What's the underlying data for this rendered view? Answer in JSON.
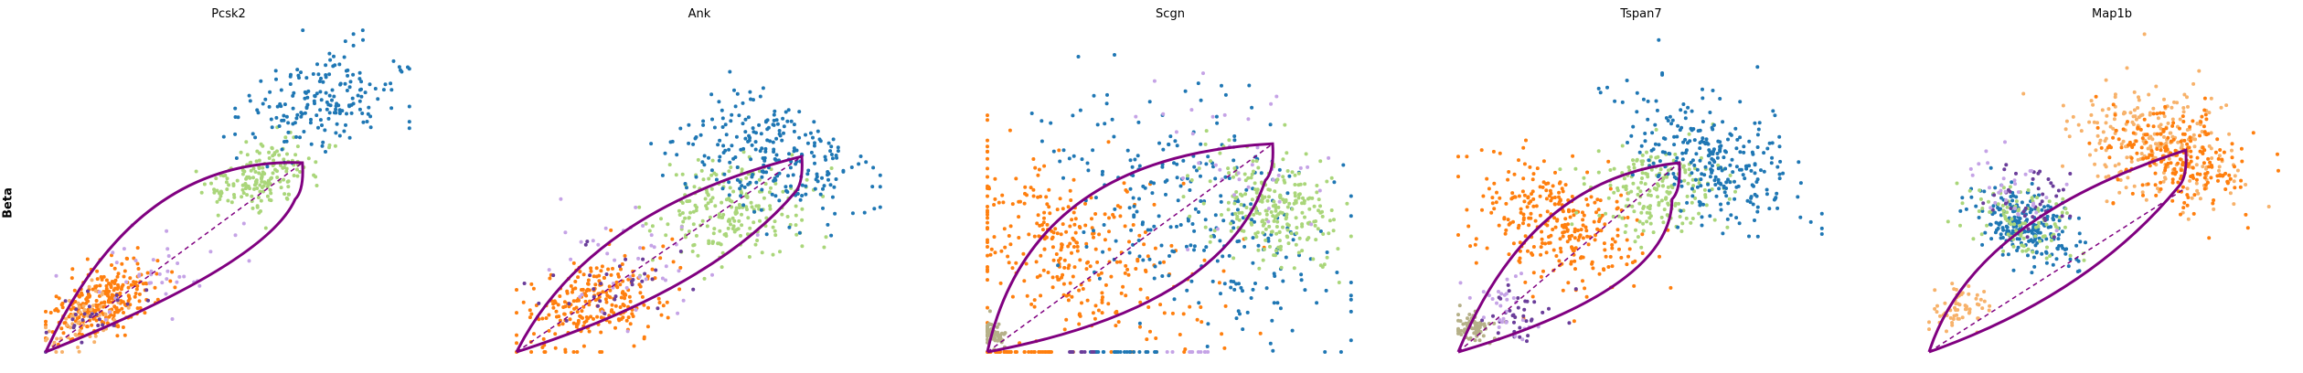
{
  "row_label": "Beta",
  "colors": {
    "orange": "#ff7f0e",
    "light_orange": "#f7b26b",
    "blue": "#1f77b4",
    "light_green": "#aad67a",
    "lavender": "#c5a3e6",
    "purple": "#6a3d9a",
    "olive": "#b5b088",
    "curve": "#800080"
  },
  "chart_data": [
    {
      "type": "scatter",
      "title": "Pcsk2",
      "xlim": [
        0,
        1
      ],
      "ylim": [
        0,
        1
      ],
      "grid": false,
      "phase_curve": {
        "up_cx": 0.25,
        "up_cy": 0.62,
        "down_cx": 0.62,
        "down_cy": 0.28,
        "endpoint": [
          0.72,
          0.6
        ]
      },
      "steady_state_line": {
        "from": [
          0,
          0
        ],
        "to": [
          0.72,
          0.6
        ]
      },
      "clusters": [
        {
          "color": "orange",
          "n": 260,
          "cx": 0.16,
          "cy": 0.16,
          "spread": 0.05,
          "along": 0.85
        },
        {
          "color": "light_orange",
          "n": 60,
          "cx": 0.1,
          "cy": 0.1,
          "spread": 0.04,
          "along": 0.9
        },
        {
          "color": "light_green",
          "n": 180,
          "cx": 0.6,
          "cy": 0.55,
          "spread": 0.05,
          "along": 0.8
        },
        {
          "color": "blue",
          "n": 190,
          "cx": 0.78,
          "cy": 0.8,
          "spread": 0.09,
          "along": 0.6
        },
        {
          "color": "lavender",
          "n": 40,
          "cx": 0.3,
          "cy": 0.25,
          "spread": 0.08,
          "along": 0.8
        },
        {
          "color": "purple",
          "n": 25,
          "cx": 0.12,
          "cy": 0.1,
          "spread": 0.04,
          "along": 0.9
        }
      ]
    },
    {
      "type": "scatter",
      "title": "Ank",
      "xlim": [
        0,
        1
      ],
      "ylim": [
        0,
        1
      ],
      "grid": false,
      "phase_curve": {
        "up_cx": 0.2,
        "up_cy": 0.45,
        "down_cx": 0.55,
        "down_cy": 0.2,
        "endpoint": [
          0.8,
          0.62
        ]
      },
      "steady_state_line": {
        "from": [
          0,
          0
        ],
        "to": [
          0.8,
          0.62
        ]
      },
      "clusters": [
        {
          "color": "orange",
          "n": 260,
          "cx": 0.22,
          "cy": 0.16,
          "spread": 0.07,
          "along": 0.75
        },
        {
          "color": "light_green",
          "n": 220,
          "cx": 0.6,
          "cy": 0.45,
          "spread": 0.08,
          "along": 0.6
        },
        {
          "color": "blue",
          "n": 250,
          "cx": 0.72,
          "cy": 0.62,
          "spread": 0.12,
          "along": 0.3
        },
        {
          "color": "lavender",
          "n": 40,
          "cx": 0.3,
          "cy": 0.28,
          "spread": 0.1,
          "along": 0.6
        },
        {
          "color": "purple",
          "n": 30,
          "cx": 0.26,
          "cy": 0.2,
          "spread": 0.06,
          "along": 0.7
        }
      ]
    },
    {
      "type": "scatter",
      "title": "Scgn",
      "xlim": [
        0,
        1
      ],
      "ylim": [
        0,
        1
      ],
      "grid": false,
      "phase_curve": {
        "up_cx": 0.12,
        "up_cy": 0.62,
        "down_cx": 0.66,
        "down_cy": 0.14,
        "endpoint": [
          0.8,
          0.66
        ]
      },
      "steady_state_line": {
        "from": [
          0,
          0
        ],
        "to": [
          0.8,
          0.66
        ]
      },
      "clusters": [
        {
          "color": "orange",
          "n": 320,
          "cx": 0.25,
          "cy": 0.3,
          "spread": 0.17,
          "along": 0.1
        },
        {
          "color": "blue",
          "n": 280,
          "cx": 0.6,
          "cy": 0.45,
          "spread": 0.2,
          "along": 0.0
        },
        {
          "color": "light_green",
          "n": 250,
          "cx": 0.8,
          "cy": 0.45,
          "spread": 0.09,
          "along": 0.0
        },
        {
          "color": "lavender",
          "n": 40,
          "cx": 0.75,
          "cy": 0.6,
          "spread": 0.12,
          "along": 0.0
        },
        {
          "color": "olive",
          "n": 60,
          "cx": 0.01,
          "cy": 0.06,
          "spread": 0.02,
          "along": 0.0
        }
      ],
      "baseline_points": [
        {
          "color": "orange",
          "x_from": 0.0,
          "x_to": 0.18,
          "n": 40
        },
        {
          "color": "blue",
          "x_from": 0.28,
          "x_to": 0.5,
          "n": 25
        },
        {
          "color": "purple",
          "x_from": 0.22,
          "x_to": 0.3,
          "n": 10
        },
        {
          "color": "lavender",
          "x_from": 0.5,
          "x_to": 0.62,
          "n": 10
        }
      ]
    },
    {
      "type": "scatter",
      "title": "Tspan7",
      "xlim": [
        0,
        1
      ],
      "ylim": [
        0,
        1
      ],
      "grid": false,
      "phase_curve": {
        "up_cx": 0.2,
        "up_cy": 0.55,
        "down_cx": 0.6,
        "down_cy": 0.2,
        "endpoint": [
          0.62,
          0.6
        ]
      },
      "steady_state_line": {
        "from": [
          0,
          0
        ],
        "to": [
          0.62,
          0.6
        ]
      },
      "clusters": [
        {
          "color": "orange",
          "n": 300,
          "cx": 0.28,
          "cy": 0.42,
          "spread": 0.12,
          "along": 0.2
        },
        {
          "color": "light_green",
          "n": 200,
          "cx": 0.55,
          "cy": 0.52,
          "spread": 0.08,
          "along": 0.5
        },
        {
          "color": "blue",
          "n": 280,
          "cx": 0.7,
          "cy": 0.62,
          "spread": 0.12,
          "along": 0.1
        },
        {
          "color": "olive",
          "n": 70,
          "cx": 0.04,
          "cy": 0.08,
          "spread": 0.03,
          "along": 0.3
        },
        {
          "color": "purple",
          "n": 35,
          "cx": 0.18,
          "cy": 0.12,
          "spread": 0.05,
          "along": 0.6
        },
        {
          "color": "lavender",
          "n": 30,
          "cx": 0.14,
          "cy": 0.14,
          "spread": 0.06,
          "along": 0.4
        }
      ]
    },
    {
      "type": "scatter",
      "title": "Map1b",
      "xlim": [
        0,
        1
      ],
      "ylim": [
        0,
        1
      ],
      "grid": false,
      "phase_curve": {
        "up_cx": 0.12,
        "up_cy": 0.42,
        "down_cx": 0.45,
        "down_cy": 0.18,
        "endpoint": [
          0.72,
          0.64
        ]
      },
      "steady_state_line": {
        "from": [
          0,
          0
        ],
        "to": [
          0.72,
          0.52
        ]
      },
      "clusters": [
        {
          "color": "light_orange",
          "n": 260,
          "cx": 0.64,
          "cy": 0.66,
          "spread": 0.11,
          "along": 0.3
        },
        {
          "color": "orange",
          "n": 220,
          "cx": 0.7,
          "cy": 0.62,
          "spread": 0.09,
          "along": 0.3
        },
        {
          "color": "blue",
          "n": 230,
          "cx": 0.27,
          "cy": 0.4,
          "spread": 0.07,
          "along": 0.2
        },
        {
          "color": "light_green",
          "n": 100,
          "cx": 0.26,
          "cy": 0.42,
          "spread": 0.07,
          "along": 0.2
        },
        {
          "color": "purple",
          "n": 40,
          "cx": 0.3,
          "cy": 0.48,
          "spread": 0.06,
          "along": 0.2
        },
        {
          "color": "lavender",
          "n": 30,
          "cx": 0.24,
          "cy": 0.5,
          "spread": 0.06,
          "along": 0.2
        },
        {
          "color": "light_orange",
          "n": 60,
          "cx": 0.08,
          "cy": 0.14,
          "spread": 0.04,
          "along": 0.6
        }
      ]
    }
  ]
}
